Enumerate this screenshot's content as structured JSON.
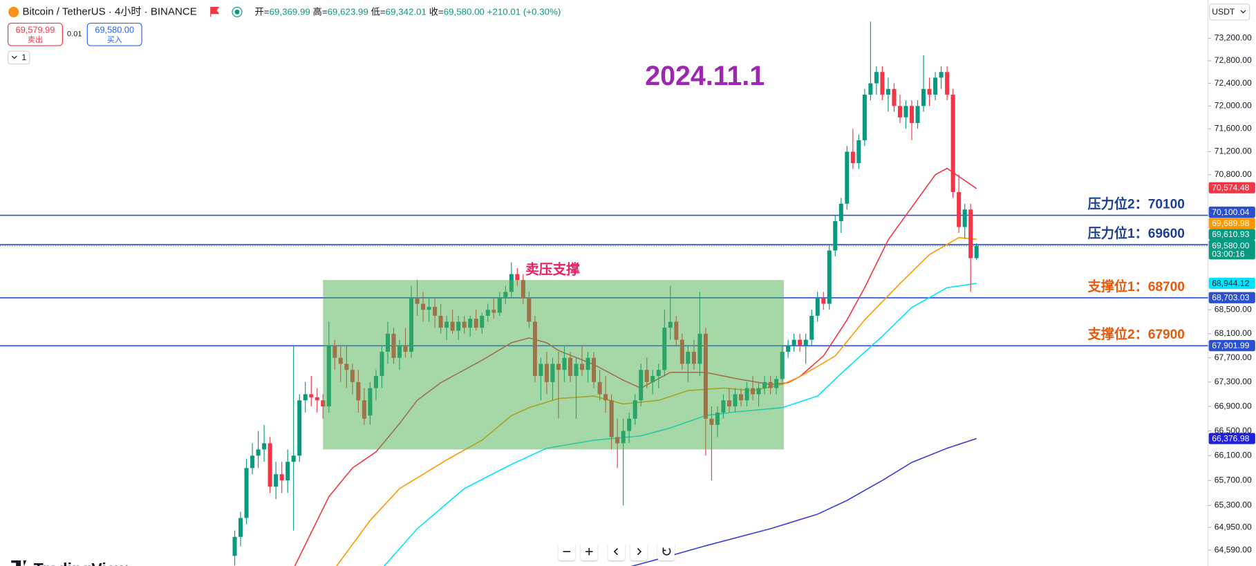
{
  "header": {
    "symbol": "Bitcoin / TetherUS · 4小时 · BINANCE",
    "ohlc": [
      {
        "label": "开=",
        "value": "69,369.99"
      },
      {
        "label": "高=",
        "value": "69,623.99"
      },
      {
        "label": "低=",
        "value": "69,342.01"
      },
      {
        "label": "收=",
        "value": "69,580.00"
      }
    ],
    "change": "+210.01 (+0.30%)",
    "sell_price": "69,579.99",
    "sell": "卖出",
    "spread": "0.01",
    "buy_price": "69,580.00",
    "buy": "买入",
    "quantity": "1",
    "currency": "USDT",
    "logo": "TradingView"
  },
  "chart_data": {
    "type": "candlestick",
    "title": "2024.11.1",
    "log": true,
    "grid": false,
    "ylim": [
      64340,
      73890
    ],
    "yticks": [
      {
        "value": 73200,
        "label": "73,200.00"
      },
      {
        "value": 72800,
        "label": "72,800.00"
      },
      {
        "value": 72400,
        "label": "72,400.00"
      },
      {
        "value": 72000,
        "label": "72,000.00"
      },
      {
        "value": 71600,
        "label": "71,600.00"
      },
      {
        "value": 71200,
        "label": "71,200.00"
      },
      {
        "value": 70800,
        "label": "70,800.00"
      },
      {
        "value": 68500,
        "label": "68,500.00"
      },
      {
        "value": 68100,
        "label": "68,100.00"
      },
      {
        "value": 67700,
        "label": "67,700.00"
      },
      {
        "value": 67300,
        "label": "67,300.00"
      },
      {
        "value": 66900,
        "label": "66,900.00"
      },
      {
        "value": 66500,
        "label": "66,500.00"
      },
      {
        "value": 66100,
        "label": "66,100.00"
      },
      {
        "value": 65700,
        "label": "65,700.00"
      },
      {
        "value": 65300,
        "label": "65,300.00"
      },
      {
        "value": 64950,
        "label": "64,950.00"
      },
      {
        "value": 64590,
        "label": "64,590.00"
      }
    ],
    "up_color": "#089981",
    "down_color": "#f23645",
    "ohlc": [
      [
        64500,
        64900,
        64350,
        64800
      ],
      [
        64800,
        65200,
        64650,
        65100
      ],
      [
        65100,
        66050,
        65000,
        65900
      ],
      [
        65900,
        66300,
        65800,
        66100
      ],
      [
        66100,
        66500,
        65900,
        66200
      ],
      [
        66200,
        66600,
        66000,
        66300
      ],
      [
        66300,
        66400,
        65500,
        65600
      ],
      [
        65600,
        66000,
        65400,
        65800
      ],
      [
        65800,
        66000,
        65500,
        65700
      ],
      [
        65700,
        66200,
        65500,
        66000
      ],
      [
        66000,
        67900,
        64900,
        66100
      ],
      [
        66100,
        67100,
        66000,
        67000
      ],
      [
        67000,
        67300,
        66800,
        67100
      ],
      [
        67100,
        67400,
        66900,
        67050
      ],
      [
        67050,
        67200,
        66800,
        67000
      ],
      [
        67000,
        67100,
        66700,
        66900
      ],
      [
        66900,
        68300,
        66800,
        67900
      ],
      [
        67900,
        68000,
        67500,
        67700
      ],
      [
        67700,
        67900,
        67300,
        67600
      ],
      [
        67600,
        67900,
        67200,
        67500
      ],
      [
        67500,
        67600,
        67100,
        67300
      ],
      [
        67300,
        67500,
        66800,
        67000
      ],
      [
        67000,
        67200,
        66600,
        66700
      ],
      [
        66750,
        67300,
        66600,
        67200
      ],
      [
        67200,
        67500,
        67000,
        67400
      ],
      [
        67400,
        67900,
        67200,
        67800
      ],
      [
        67800,
        68300,
        67600,
        68100
      ],
      [
        68100,
        68200,
        67600,
        67700
      ],
      [
        67700,
        68000,
        67500,
        67900
      ],
      [
        67900,
        68200,
        67700,
        67800
      ],
      [
        67800,
        68900,
        67700,
        68700
      ],
      [
        68700,
        69000,
        68400,
        68600
      ],
      [
        68600,
        68800,
        68300,
        68500
      ],
      [
        68500,
        68700,
        68300,
        68550
      ],
      [
        68550,
        68700,
        68200,
        68400
      ],
      [
        68400,
        68600,
        68100,
        68200
      ],
      [
        68200,
        68400,
        68000,
        68300
      ],
      [
        68300,
        68500,
        68100,
        68150
      ],
      [
        68150,
        68400,
        68000,
        68300
      ],
      [
        68300,
        68400,
        68100,
        68200
      ],
      [
        68200,
        68400,
        68050,
        68350
      ],
      [
        68350,
        68500,
        68150,
        68200
      ],
      [
        68200,
        68450,
        68100,
        68400
      ],
      [
        68400,
        68600,
        68300,
        68500
      ],
      [
        68500,
        68700,
        68350,
        68450
      ],
      [
        68450,
        68800,
        68400,
        68700
      ],
      [
        68700,
        68900,
        68600,
        68800
      ],
      [
        68800,
        69300,
        68700,
        69100
      ],
      [
        69100,
        69200,
        68900,
        69000
      ],
      [
        69000,
        69100,
        68600,
        68700
      ],
      [
        68700,
        68800,
        68200,
        68300
      ],
      [
        68300,
        68400,
        67300,
        67400
      ],
      [
        67400,
        67700,
        67000,
        67600
      ],
      [
        67600,
        67800,
        67100,
        67300
      ],
      [
        67300,
        67700,
        67000,
        67600
      ],
      [
        67600,
        67800,
        66700,
        67500
      ],
      [
        67500,
        67900,
        67300,
        67700
      ],
      [
        67700,
        67800,
        67300,
        67400
      ],
      [
        67400,
        67700,
        66700,
        67600
      ],
      [
        67600,
        67900,
        67400,
        67500
      ],
      [
        67500,
        67800,
        67300,
        67700
      ],
      [
        67700,
        67800,
        67200,
        67300
      ],
      [
        67300,
        67500,
        67000,
        67100
      ],
      [
        67100,
        67400,
        66800,
        67000
      ],
      [
        67000,
        67100,
        66200,
        66400
      ],
      [
        66400,
        66700,
        65900,
        66300
      ],
      [
        66300,
        66700,
        65300,
        66500
      ],
      [
        66500,
        66800,
        66300,
        66700
      ],
      [
        66700,
        67100,
        66600,
        67000
      ],
      [
        67000,
        67600,
        66900,
        67500
      ],
      [
        67500,
        67700,
        67200,
        67300
      ],
      [
        67300,
        67500,
        67100,
        67400
      ],
      [
        67400,
        67600,
        67200,
        67500
      ],
      [
        67500,
        68500,
        67400,
        68200
      ],
      [
        68200,
        68900,
        68000,
        68300
      ],
      [
        68300,
        68400,
        67900,
        68000
      ],
      [
        68000,
        68100,
        67500,
        67600
      ],
      [
        67600,
        67900,
        67300,
        67800
      ],
      [
        67800,
        68000,
        67500,
        67600
      ],
      [
        67600,
        68800,
        67400,
        68100
      ],
      [
        68100,
        68200,
        66100,
        66700
      ],
      [
        66700,
        66900,
        65700,
        66600
      ],
      [
        66600,
        66900,
        66400,
        66800
      ],
      [
        66800,
        67100,
        66700,
        67000
      ],
      [
        67000,
        67200,
        66800,
        66900
      ],
      [
        66900,
        67200,
        66800,
        67100
      ],
      [
        67100,
        67200,
        66900,
        67000
      ],
      [
        67000,
        67300,
        66900,
        67200
      ],
      [
        67200,
        67400,
        67000,
        67100
      ],
      [
        67100,
        67300,
        66900,
        67200
      ],
      [
        67200,
        67400,
        67100,
        67300
      ],
      [
        67300,
        67400,
        67100,
        67200
      ],
      [
        67200,
        67400,
        67100,
        67350
      ],
      [
        67350,
        67900,
        67300,
        67800
      ],
      [
        67800,
        68000,
        67700,
        67900
      ],
      [
        67900,
        68100,
        67800,
        68000
      ],
      [
        68000,
        68100,
        67800,
        67900
      ],
      [
        67900,
        68100,
        67600,
        68000
      ],
      [
        68000,
        68500,
        67900,
        68400
      ],
      [
        68400,
        68800,
        68300,
        68700
      ],
      [
        68700,
        68800,
        68500,
        68600
      ],
      [
        68600,
        69600,
        68500,
        69500
      ],
      [
        69500,
        70100,
        69400,
        70000
      ],
      [
        70000,
        70400,
        69800,
        70300
      ],
      [
        70300,
        71300,
        70200,
        71200
      ],
      [
        71200,
        71600,
        70900,
        71000
      ],
      [
        71000,
        71500,
        70900,
        71400
      ],
      [
        71400,
        72300,
        71300,
        72200
      ],
      [
        72200,
        73500,
        72100,
        72400
      ],
      [
        72400,
        72700,
        72200,
        72600
      ],
      [
        72600,
        72700,
        72100,
        72200
      ],
      [
        72200,
        72500,
        71900,
        72300
      ],
      [
        72300,
        72400,
        71900,
        72000
      ],
      [
        72000,
        72200,
        71700,
        71800
      ],
      [
        71800,
        72100,
        71600,
        72000
      ],
      [
        72000,
        72100,
        71400,
        71700
      ],
      [
        71700,
        72100,
        71600,
        72000
      ],
      [
        72000,
        72900,
        71900,
        72300
      ],
      [
        72300,
        72500,
        72000,
        72200
      ],
      [
        72200,
        72600,
        72100,
        72500
      ],
      [
        72500,
        72700,
        72300,
        72600
      ],
      [
        72600,
        72700,
        72100,
        72200
      ],
      [
        72200,
        72300,
        70400,
        70500
      ],
      [
        70500,
        70800,
        69800,
        69900
      ],
      [
        69900,
        70300,
        69700,
        70200
      ],
      [
        70200,
        70300,
        68800,
        69370
      ],
      [
        69369.99,
        69623.99,
        69342.01,
        69580
      ]
    ],
    "series": [
      {
        "color": "#f23645",
        "x": [
          10,
          16,
          20,
          24,
          28,
          31,
          35,
          42,
          47,
          50,
          53,
          55,
          61,
          66,
          69,
          74,
          80,
          85,
          91,
          94,
          96,
          100,
          104,
          107,
          111,
          115,
          119,
          121,
          123,
          126
        ],
        "values": [
          64300,
          65440,
          65900,
          66160,
          66620,
          67000,
          67290,
          67660,
          67950,
          68030,
          67950,
          67820,
          67590,
          67330,
          67200,
          67460,
          67460,
          67360,
          67260,
          67290,
          67390,
          67730,
          68330,
          68870,
          69680,
          70240,
          70800,
          70910,
          70770,
          70560
        ]
      },
      {
        "color": "#ff9800",
        "x": [
          17,
          23,
          28,
          36,
          42,
          47,
          50,
          55,
          61,
          66,
          72,
          77,
          83,
          88,
          93,
          96,
          102,
          107,
          113,
          118,
          123,
          126
        ],
        "values": [
          64300,
          65060,
          65570,
          66030,
          66350,
          66750,
          66880,
          67030,
          67070,
          66940,
          67000,
          67160,
          67200,
          67160,
          67260,
          67390,
          67730,
          68330,
          68940,
          69430,
          69720,
          69690
        ]
      },
      {
        "color": "#00e5ff",
        "x": [
          25,
          31,
          39,
          47,
          53,
          61,
          69,
          74,
          80,
          85,
          93,
          99,
          104,
          110,
          115,
          121,
          126
        ],
        "values": [
          64300,
          64930,
          65570,
          65960,
          66220,
          66350,
          66420,
          66550,
          66750,
          66810,
          66880,
          67070,
          67530,
          68060,
          68540,
          68870,
          68944
        ]
      },
      {
        "color": "#3d3dd6",
        "x": [
          66,
          72,
          80,
          91,
          99,
          104,
          110,
          115,
          121,
          126
        ],
        "values": [
          64300,
          64450,
          64660,
          64930,
          65160,
          65380,
          65700,
          65990,
          66220,
          66377
        ]
      }
    ],
    "zone": {
      "label": "卖压支撑",
      "x0": 15,
      "x1": 93,
      "low": 66200,
      "high": 69000,
      "color": "#4caf50"
    },
    "levels": [
      {
        "name": "压力位2：",
        "value": 70100,
        "color": "#1c3f94"
      },
      {
        "name": "压力位1：",
        "value": 69600,
        "color": "#1c3f94"
      },
      {
        "name": "支撑位1：",
        "value": 68700,
        "color": "#e8590c"
      },
      {
        "name": "支撑位2：",
        "value": 67900,
        "color": "#e8590c"
      }
    ],
    "level_line_color": "#2a4fd0",
    "price_tags": [
      {
        "value": 70574.48,
        "label": "70,574.48",
        "color": "#f23645"
      },
      {
        "value": 70100.04,
        "label": "70,100.04",
        "color": "#2a4fd0"
      },
      {
        "value": 69689.98,
        "label": "69,689.98",
        "color": "#ff9800"
      },
      {
        "value": 69610.93,
        "label": "69,610.93",
        "color": "#089981"
      },
      {
        "value": 69580,
        "label": "69,580.00",
        "color": "#089981",
        "time": "03:00:16"
      },
      {
        "value": 68944.12,
        "label": "68,944.12",
        "color": "#00e5ff",
        "text_color": "#131722"
      },
      {
        "value": 68703.03,
        "label": "68,703.03",
        "color": "#2a4fd0"
      },
      {
        "value": 67901.99,
        "label": "67,901.99",
        "color": "#2a4fd0"
      },
      {
        "value": 66376.98,
        "label": "66,376.98",
        "color": "#1f1fe0"
      }
    ]
  }
}
